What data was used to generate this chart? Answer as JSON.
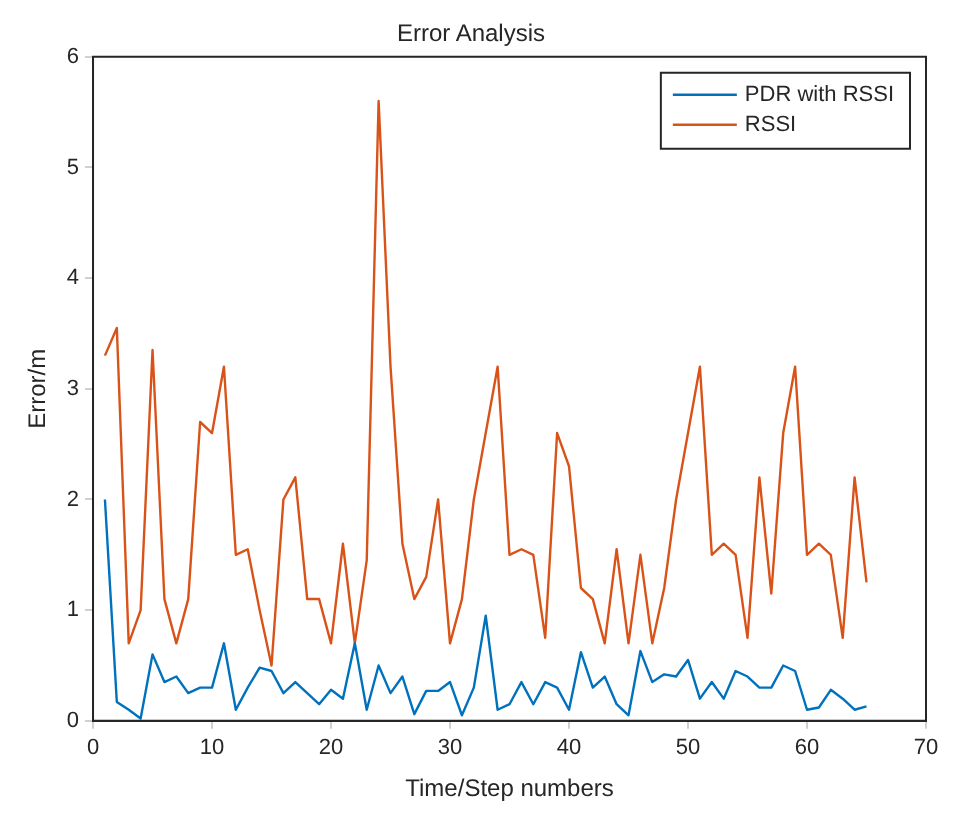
{
  "chart_data": {
    "type": "line",
    "title": "Error Analysis",
    "xlabel": "Time/Step numbers",
    "ylabel": "Error/m",
    "x": [
      1,
      2,
      3,
      4,
      5,
      6,
      7,
      8,
      9,
      10,
      11,
      12,
      13,
      14,
      15,
      16,
      17,
      18,
      19,
      20,
      21,
      22,
      23,
      24,
      25,
      26,
      27,
      28,
      29,
      30,
      31,
      32,
      33,
      34,
      35,
      36,
      37,
      38,
      39,
      40,
      41,
      42,
      43,
      44,
      45,
      46,
      47,
      48,
      49,
      50,
      51,
      52,
      53,
      54,
      55,
      56,
      57,
      58,
      59,
      60,
      61,
      62,
      63,
      64,
      65
    ],
    "series": [
      {
        "name": "PDR with RSSI",
        "color": "#0072bd",
        "values": [
          2.0,
          0.17,
          0.1,
          0.02,
          0.6,
          0.35,
          0.4,
          0.25,
          0.3,
          0.3,
          0.7,
          0.1,
          0.3,
          0.48,
          0.45,
          0.25,
          0.35,
          0.25,
          0.15,
          0.28,
          0.2,
          0.7,
          0.1,
          0.5,
          0.25,
          0.4,
          0.06,
          0.27,
          0.27,
          0.35,
          0.05,
          0.3,
          0.95,
          0.1,
          0.15,
          0.35,
          0.15,
          0.35,
          0.3,
          0.1,
          0.62,
          0.3,
          0.4,
          0.15,
          0.05,
          0.63,
          0.35,
          0.42,
          0.4,
          0.55,
          0.2,
          0.35,
          0.2,
          0.45,
          0.4,
          0.3,
          0.3,
          0.5,
          0.45,
          0.1,
          0.12,
          0.28,
          0.2,
          0.1,
          0.13
        ]
      },
      {
        "name": "RSSI",
        "color": "#d95319",
        "values": [
          3.3,
          3.55,
          0.7,
          1.0,
          3.35,
          1.1,
          0.7,
          1.1,
          2.7,
          2.6,
          3.2,
          1.5,
          1.55,
          1.0,
          0.5,
          2.0,
          2.2,
          1.1,
          1.1,
          0.7,
          1.6,
          0.7,
          1.45,
          5.6,
          3.2,
          1.6,
          1.1,
          1.3,
          2.0,
          0.7,
          1.1,
          2.0,
          2.6,
          3.2,
          1.5,
          1.55,
          1.5,
          0.75,
          2.6,
          2.3,
          1.2,
          1.1,
          0.7,
          1.55,
          0.7,
          1.5,
          0.7,
          1.2,
          2.0,
          2.6,
          3.2,
          1.5,
          1.6,
          1.5,
          0.75,
          2.2,
          1.15,
          2.6,
          3.2,
          1.5,
          1.6,
          1.5,
          0.75,
          2.2,
          1.25
        ]
      }
    ],
    "xlim": [
      0,
      70
    ],
    "xticks": [
      0,
      10,
      20,
      30,
      40,
      50,
      60,
      70
    ],
    "ylim": [
      0,
      6
    ],
    "yticks": [
      0,
      1,
      2,
      3,
      4,
      5,
      6
    ],
    "grid": false,
    "legend": "top right",
    "marker": "none",
    "line_style": "solid"
  }
}
